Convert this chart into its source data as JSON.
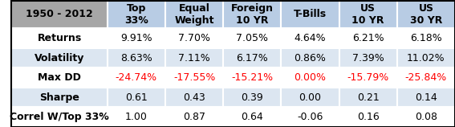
{
  "title_cell": "1950 - 2012",
  "col_headers": [
    "Top\n33%",
    "Equal\nWeight",
    "Foreign\n10 YR",
    "T-Bills",
    "US\n10 YR",
    "US\n30 YR"
  ],
  "row_headers": [
    "Returns",
    "Volatility",
    "Max DD",
    "Sharpe",
    "Correl W/Top 33%"
  ],
  "table_data": [
    [
      "9.91%",
      "7.70%",
      "7.05%",
      "4.64%",
      "6.21%",
      "6.18%"
    ],
    [
      "8.63%",
      "7.11%",
      "6.17%",
      "0.86%",
      "7.39%",
      "11.02%"
    ],
    [
      "-24.74%",
      "-17.55%",
      "-15.21%",
      "0.00%",
      "-15.79%",
      "-25.84%"
    ],
    [
      "0.61",
      "0.43",
      "0.39",
      "0.00",
      "0.21",
      "0.14"
    ],
    [
      "1.00",
      "0.87",
      "0.64",
      "-0.06",
      "0.16",
      "0.08"
    ]
  ],
  "red_rows": [
    2
  ],
  "header_bg": "#b8cce4",
  "title_bg": "#a6a6a6",
  "row_bg_odd": "#dce6f1",
  "row_bg_even": "#ffffff",
  "header_text_color": "#000000",
  "normal_text_color": "#000000",
  "red_text_color": "#ff0000",
  "row_header_bold": true,
  "col_header_bold": true,
  "title_bold": true,
  "font_size": 9,
  "header_font_size": 9
}
